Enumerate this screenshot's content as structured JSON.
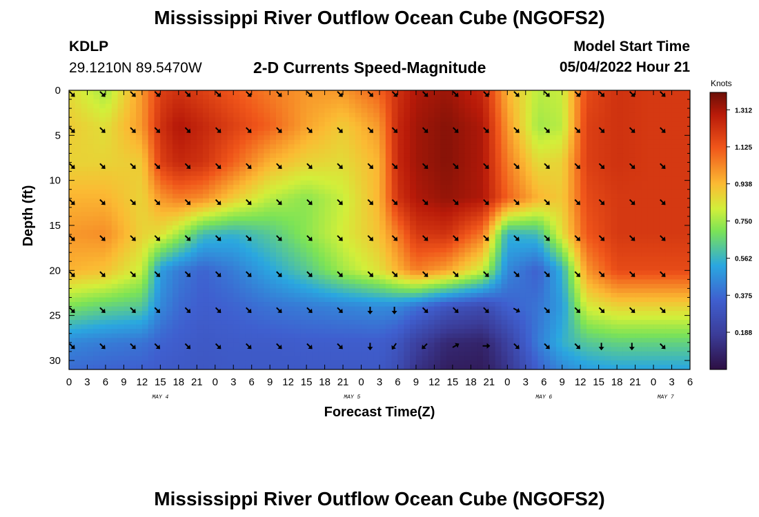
{
  "header": {
    "title": "Mississippi River Outflow Ocean Cube (NGOFS2)",
    "station_id": "KDLP",
    "station_coords": "29.1210N  89.5470W",
    "plot_title": "2-D Currents Speed-Magnitude",
    "model_start_label": "Model Start Time",
    "model_start_value": "05/04/2022 Hour 21"
  },
  "footer": {
    "title": "Mississippi River Outflow Ocean Cube (NGOFS2)"
  },
  "colors": {
    "background": "#ffffff",
    "axis": "#000000"
  },
  "chart_data": {
    "type": "heatmap",
    "title": "2-D Currents Speed-Magnitude",
    "xlabel": "Forecast Time(Z)",
    "ylabel": "Depth (ft)",
    "x_hours_from_start": [
      0,
      102
    ],
    "xlim_hours": [
      0,
      102
    ],
    "x_tick_hours": [
      0,
      3,
      6,
      9,
      12,
      15,
      18,
      21,
      24,
      27,
      30,
      33,
      36,
      39,
      42,
      45,
      48,
      51,
      54,
      57,
      60,
      63,
      66,
      69,
      72,
      75,
      78,
      81,
      84,
      87,
      90,
      93,
      96,
      99,
      102
    ],
    "x_tick_labels": [
      "0",
      "3",
      "6",
      "9",
      "12",
      "15",
      "18",
      "21",
      "0",
      "3",
      "6",
      "9",
      "12",
      "15",
      "18",
      "21",
      "0",
      "3",
      "6",
      "9",
      "12",
      "15",
      "18",
      "21",
      "0",
      "3",
      "6",
      "9",
      "12",
      "15",
      "18",
      "21",
      "0",
      "3",
      "6"
    ],
    "date_labels": [
      {
        "text": "MAY 4",
        "hour": 15
      },
      {
        "text": "MAY 5",
        "hour": 46.5
      },
      {
        "text": "MAY 6",
        "hour": 78
      },
      {
        "text": "MAY 7",
        "hour": 98
      }
    ],
    "ylim_ft": [
      0,
      31
    ],
    "y_ticks": [
      0,
      5,
      10,
      15,
      20,
      25,
      30
    ],
    "colorbar": {
      "title": "Knots",
      "range": [
        0,
        1.4
      ],
      "ticks": [
        0.188,
        0.375,
        0.562,
        0.75,
        0.938,
        1.125,
        1.312
      ],
      "tick_labels": [
        "0.188",
        "0.375",
        "0.562",
        "0.750",
        "0.938",
        "1.125",
        "1.312"
      ]
    },
    "speed_grid": {
      "units": "knots",
      "time_hours": [
        0,
        6,
        12,
        15,
        18,
        22,
        27,
        33,
        39,
        45,
        51,
        54,
        57,
        62,
        68,
        72,
        77,
        81,
        85,
        90,
        96,
        102
      ],
      "depth_ft": [
        0,
        4,
        8,
        12,
        16,
        20,
        24,
        28,
        31
      ],
      "values": [
        [
          0.86,
          0.75,
          1.0,
          1.18,
          1.22,
          1.18,
          1.12,
          1.05,
          1.0,
          1.0,
          1.1,
          1.22,
          1.3,
          1.33,
          1.25,
          0.95,
          0.78,
          0.8,
          1.15,
          1.22,
          1.2,
          1.2
        ],
        [
          0.9,
          0.85,
          1.0,
          1.22,
          1.3,
          1.25,
          1.18,
          1.1,
          0.98,
          0.9,
          1.0,
          1.25,
          1.32,
          1.36,
          1.3,
          1.0,
          0.75,
          0.78,
          1.18,
          1.22,
          1.2,
          1.2
        ],
        [
          0.88,
          0.88,
          0.9,
          1.18,
          1.25,
          1.22,
          1.1,
          0.95,
          0.88,
          0.86,
          0.95,
          1.25,
          1.32,
          1.36,
          1.3,
          1.05,
          0.86,
          0.88,
          1.18,
          1.22,
          1.2,
          1.2
        ],
        [
          0.95,
          0.95,
          0.88,
          1.0,
          1.05,
          1.02,
          0.9,
          0.78,
          0.72,
          0.8,
          0.95,
          1.22,
          1.3,
          1.34,
          1.3,
          1.1,
          0.95,
          0.9,
          1.15,
          1.2,
          1.2,
          1.2
        ],
        [
          1.0,
          1.02,
          0.88,
          0.85,
          0.75,
          0.58,
          0.55,
          0.62,
          0.72,
          0.82,
          0.92,
          1.05,
          1.2,
          1.22,
          1.05,
          0.55,
          0.58,
          0.85,
          1.12,
          1.2,
          1.2,
          1.2
        ],
        [
          0.95,
          0.92,
          0.8,
          0.5,
          0.42,
          0.36,
          0.42,
          0.52,
          0.62,
          0.75,
          0.85,
          0.95,
          1.05,
          0.98,
          0.8,
          0.45,
          0.35,
          0.55,
          1.0,
          1.15,
          1.15,
          1.15
        ],
        [
          0.7,
          0.65,
          0.62,
          0.45,
          0.38,
          0.34,
          0.36,
          0.4,
          0.42,
          0.44,
          0.46,
          0.45,
          0.4,
          0.3,
          0.25,
          0.35,
          0.4,
          0.5,
          0.82,
          0.88,
          0.88,
          0.88
        ],
        [
          0.45,
          0.42,
          0.4,
          0.36,
          0.34,
          0.32,
          0.33,
          0.33,
          0.34,
          0.34,
          0.34,
          0.3,
          0.2,
          0.1,
          0.08,
          0.2,
          0.42,
          0.55,
          0.62,
          0.65,
          0.65,
          0.65
        ],
        [
          0.38,
          0.36,
          0.35,
          0.33,
          0.32,
          0.31,
          0.32,
          0.32,
          0.32,
          0.32,
          0.32,
          0.26,
          0.14,
          0.06,
          0.05,
          0.15,
          0.35,
          0.45,
          0.5,
          0.52,
          0.52,
          0.52
        ]
      ]
    },
    "direction_vectors": {
      "time_hours": [
        0,
        5,
        10,
        14,
        19,
        24,
        29,
        34,
        39,
        44,
        49,
        53,
        58,
        63,
        68,
        73,
        78,
        83,
        87,
        92,
        97
      ],
      "depth_ft": [
        0,
        4,
        8,
        12,
        16,
        20,
        24,
        28
      ],
      "default_angle_deg": 135,
      "overrides": [
        {
          "time": 49,
          "depth": 24,
          "angle": 180
        },
        {
          "time": 53,
          "depth": 24,
          "angle": 180
        },
        {
          "time": 49,
          "depth": 28,
          "angle": 180
        },
        {
          "time": 53,
          "depth": 28,
          "angle": 215
        },
        {
          "time": 58,
          "depth": 28,
          "angle": 225
        },
        {
          "time": 63,
          "depth": 28,
          "angle": 60
        },
        {
          "time": 68,
          "depth": 28,
          "angle": 90
        },
        {
          "time": 73,
          "depth": 24,
          "angle": 120
        },
        {
          "time": 87,
          "depth": 28,
          "angle": 180
        },
        {
          "time": 92,
          "depth": 28,
          "angle": 180
        },
        {
          "time": 97,
          "depth": 28,
          "angle": 135
        }
      ]
    }
  }
}
